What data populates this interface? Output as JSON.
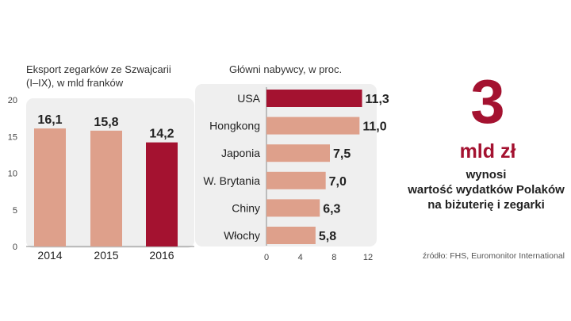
{
  "chart_data": [
    {
      "type": "bar",
      "title_lines": [
        "Eksport zegarków ze Szwajcarii",
        "(I–IX), w mld franków"
      ],
      "categories": [
        "2014",
        "2015",
        "2016"
      ],
      "values": [
        16.1,
        15.8,
        14.2
      ],
      "value_labels": [
        "16,1",
        "15,8",
        "14,2"
      ],
      "highlight": [
        false,
        false,
        true
      ],
      "ylim": [
        0,
        20
      ],
      "yticks": [
        0,
        5,
        10,
        15,
        20
      ],
      "grid": false
    },
    {
      "type": "bar",
      "orientation": "horizontal",
      "title": "Główni nabywcy, w proc.",
      "categories": [
        "USA",
        "Hongkong",
        "Japonia",
        "W. Brytania",
        "Chiny",
        "Włochy"
      ],
      "values": [
        11.3,
        11.0,
        7.5,
        7.0,
        6.3,
        5.8
      ],
      "value_labels": [
        "11,3",
        "11,0",
        "7,5",
        "7,0",
        "6,3",
        "5,8"
      ],
      "highlight": [
        true,
        false,
        false,
        false,
        false,
        false
      ],
      "xlim": [
        0,
        12
      ],
      "xticks": [
        0,
        4,
        8,
        12
      ],
      "grid": false
    }
  ],
  "colors": {
    "highlight": "#a41230",
    "bar": "#dea08b",
    "panel": "#efefef",
    "accent_text": "#a41230"
  },
  "callout": {
    "number": "3",
    "unit": "mld zł",
    "lines": [
      "wynosi",
      "wartość wydatków Polaków",
      "na biżuterię i zegarki"
    ]
  },
  "source": "źródło: FHS, Euromonitor International"
}
